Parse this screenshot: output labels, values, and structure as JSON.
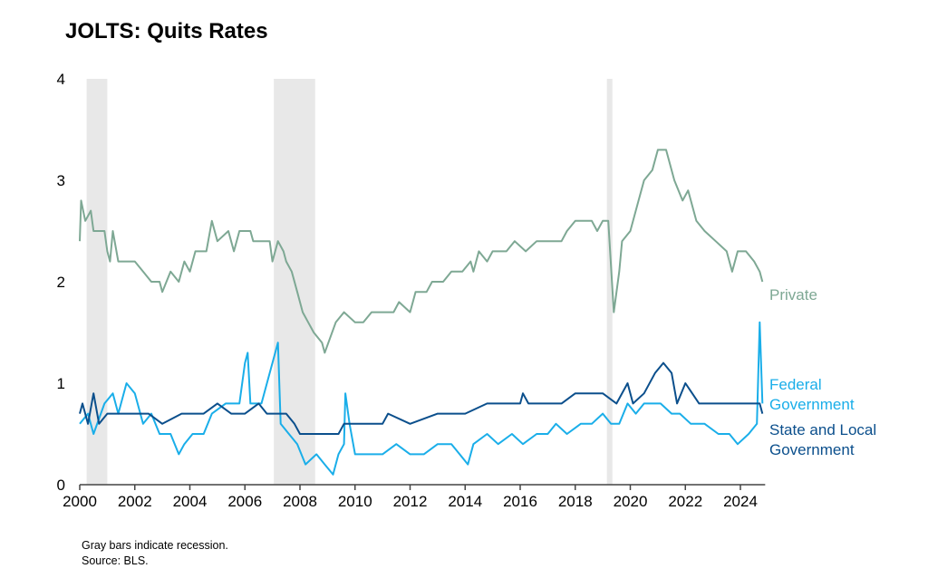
{
  "chart_data": {
    "type": "line",
    "title": "JOLTS: Quits Rates",
    "xlabel": "",
    "ylabel": "",
    "xlim": [
      2000,
      2024.9
    ],
    "ylim": [
      0,
      4
    ],
    "xticks": [
      2000,
      2002,
      2004,
      2006,
      2008,
      2010,
      2012,
      2014,
      2016,
      2018,
      2020,
      2022,
      2024
    ],
    "yticks": [
      0,
      1,
      2,
      3,
      4
    ],
    "grid": false,
    "legend": "inline labels at right end of each series",
    "recessions": [
      [
        2000.25,
        2001.0
      ],
      [
        2007.05,
        2008.55
      ],
      [
        2019.15,
        2019.35
      ]
    ],
    "notes": [
      "Gray bars indicate recession.",
      "Source: BLS."
    ],
    "series": [
      {
        "name": "Private",
        "label_lines": [
          "Private"
        ],
        "color": "#7ea894",
        "x": [
          2000,
          2000.05,
          2000.2,
          2000.4,
          2000.5,
          2000.9,
          2001.0,
          2001.1,
          2001.2,
          2001.4,
          2001.8,
          2002.0,
          2002.3,
          2002.6,
          2002.9,
          2003.0,
          2003.3,
          2003.6,
          2003.8,
          2004.0,
          2004.2,
          2004.6,
          2004.8,
          2005.0,
          2005.4,
          2005.6,
          2005.8,
          2006.2,
          2006.3,
          2006.6,
          2006.9,
          2007.0,
          2007.2,
          2007.4,
          2007.5,
          2007.7,
          2007.9,
          2008.1,
          2008.3,
          2008.5,
          2008.8,
          2008.9,
          2009.3,
          2009.6,
          2010.0,
          2010.3,
          2010.6,
          2011.0,
          2011.4,
          2011.6,
          2012.0,
          2012.2,
          2012.6,
          2012.8,
          2013.2,
          2013.5,
          2013.9,
          2014.2,
          2014.3,
          2014.5,
          2014.8,
          2015.0,
          2015.5,
          2015.8,
          2016.2,
          2016.6,
          2017.5,
          2017.7,
          2018.0,
          2018.6,
          2018.8,
          2019.0,
          2019.2,
          2019.4,
          2019.6,
          2019.7,
          2020.0,
          2020.3,
          2020.5,
          2020.8,
          2021.0,
          2021.3,
          2021.6,
          2021.9,
          2022.1,
          2022.4,
          2022.7,
          2023.1,
          2023.5,
          2023.7,
          2023.9,
          2024.2,
          2024.5,
          2024.7,
          2024.8
        ],
        "y": [
          2.4,
          2.8,
          2.6,
          2.7,
          2.5,
          2.5,
          2.3,
          2.2,
          2.5,
          2.2,
          2.2,
          2.2,
          2.1,
          2.0,
          2.0,
          1.9,
          2.1,
          2.0,
          2.2,
          2.1,
          2.3,
          2.3,
          2.6,
          2.4,
          2.5,
          2.3,
          2.5,
          2.5,
          2.4,
          2.4,
          2.4,
          2.2,
          2.4,
          2.3,
          2.2,
          2.1,
          1.9,
          1.7,
          1.6,
          1.5,
          1.4,
          1.3,
          1.6,
          1.7,
          1.6,
          1.6,
          1.7,
          1.7,
          1.7,
          1.8,
          1.7,
          1.9,
          1.9,
          2.0,
          2.0,
          2.1,
          2.1,
          2.2,
          2.1,
          2.3,
          2.2,
          2.3,
          2.3,
          2.4,
          2.3,
          2.4,
          2.4,
          2.5,
          2.6,
          2.6,
          2.5,
          2.6,
          2.6,
          1.7,
          2.1,
          2.4,
          2.5,
          2.8,
          3.0,
          3.1,
          3.3,
          3.3,
          3.0,
          2.8,
          2.9,
          2.6,
          2.5,
          2.4,
          2.3,
          2.1,
          2.3,
          2.3,
          2.2,
          2.1,
          2.0
        ]
      },
      {
        "name": "Federal Government",
        "label_lines": [
          "Federal",
          "Government"
        ],
        "color": "#1aaee9",
        "x": [
          2000,
          2000.3,
          2000.5,
          2000.9,
          2001.2,
          2001.4,
          2001.7,
          2002.0,
          2002.3,
          2002.6,
          2002.9,
          2003.3,
          2003.6,
          2003.8,
          2004.1,
          2004.5,
          2004.8,
          2005.3,
          2005.8,
          2006.0,
          2006.1,
          2006.2,
          2006.6,
          2006.9,
          2007.2,
          2007.3,
          2007.6,
          2007.9,
          2008.2,
          2008.6,
          2008.9,
          2009.2,
          2009.4,
          2009.6,
          2009.65,
          2009.8,
          2010.0,
          2010.5,
          2011.0,
          2011.5,
          2012.0,
          2012.5,
          2013.0,
          2013.5,
          2013.8,
          2014.1,
          2014.3,
          2014.8,
          2015.2,
          2015.7,
          2016.1,
          2016.6,
          2017.0,
          2017.3,
          2017.7,
          2018.2,
          2018.6,
          2019.0,
          2019.3,
          2019.6,
          2019.9,
          2020.2,
          2020.5,
          2020.8,
          2021.1,
          2021.5,
          2021.8,
          2022.2,
          2022.7,
          2023.2,
          2023.6,
          2023.9,
          2024.3,
          2024.6,
          2024.7,
          2024.8
        ],
        "y": [
          0.6,
          0.7,
          0.5,
          0.8,
          0.9,
          0.7,
          1.0,
          0.9,
          0.6,
          0.7,
          0.5,
          0.5,
          0.3,
          0.4,
          0.5,
          0.5,
          0.7,
          0.8,
          0.8,
          1.2,
          1.3,
          0.8,
          0.8,
          1.1,
          1.4,
          0.6,
          0.5,
          0.4,
          0.2,
          0.3,
          0.2,
          0.1,
          0.3,
          0.4,
          0.9,
          0.6,
          0.3,
          0.3,
          0.3,
          0.4,
          0.3,
          0.3,
          0.4,
          0.4,
          0.3,
          0.2,
          0.4,
          0.5,
          0.4,
          0.5,
          0.4,
          0.5,
          0.5,
          0.6,
          0.5,
          0.6,
          0.6,
          0.7,
          0.6,
          0.6,
          0.8,
          0.7,
          0.8,
          0.8,
          0.8,
          0.7,
          0.7,
          0.6,
          0.6,
          0.5,
          0.5,
          0.4,
          0.5,
          0.6,
          1.6,
          0.8
        ]
      },
      {
        "name": "State and Local Government",
        "label_lines": [
          "State and Local",
          "Government"
        ],
        "color": "#0b4f8c",
        "x": [
          2000,
          2000.1,
          2000.3,
          2000.5,
          2000.7,
          2001.0,
          2002.5,
          2003.0,
          2003.7,
          2004.5,
          2005.0,
          2005.5,
          2006.0,
          2006.5,
          2006.8,
          2007.5,
          2007.8,
          2008.0,
          2009.4,
          2009.6,
          2010.5,
          2011.0,
          2011.2,
          2012.0,
          2013.0,
          2014.0,
          2014.8,
          2016.0,
          2016.1,
          2016.3,
          2017.5,
          2018.0,
          2019.0,
          2019.5,
          2019.9,
          2020.1,
          2020.5,
          2020.9,
          2021.2,
          2021.5,
          2021.7,
          2022.0,
          2022.5,
          2023.2,
          2023.7,
          2024.7,
          2024.8
        ],
        "y": [
          0.7,
          0.8,
          0.6,
          0.9,
          0.6,
          0.7,
          0.7,
          0.6,
          0.7,
          0.7,
          0.8,
          0.7,
          0.7,
          0.8,
          0.7,
          0.7,
          0.6,
          0.5,
          0.5,
          0.6,
          0.6,
          0.6,
          0.7,
          0.6,
          0.7,
          0.7,
          0.8,
          0.8,
          0.9,
          0.8,
          0.8,
          0.9,
          0.9,
          0.8,
          1.0,
          0.8,
          0.9,
          1.1,
          1.2,
          1.1,
          0.8,
          1.0,
          0.8,
          0.8,
          0.8,
          0.8,
          0.7
        ]
      }
    ]
  }
}
